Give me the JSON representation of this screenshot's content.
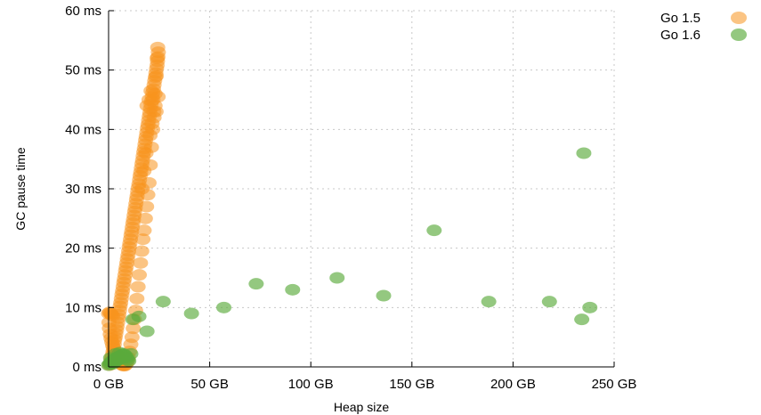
{
  "chart_data": {
    "type": "scatter",
    "xlabel": "Heap size",
    "ylabel": "GC pause time",
    "xlim": [
      0,
      250
    ],
    "ylim": [
      0,
      60
    ],
    "x_ticks": [
      {
        "value": 0,
        "label": "0 GB"
      },
      {
        "value": 50,
        "label": "50 GB"
      },
      {
        "value": 100,
        "label": "100 GB"
      },
      {
        "value": 150,
        "label": "150 GB"
      },
      {
        "value": 200,
        "label": "200 GB"
      },
      {
        "value": 250,
        "label": "250 GB"
      }
    ],
    "y_ticks": [
      {
        "value": 0,
        "label": "0 ms"
      },
      {
        "value": 10,
        "label": "10 ms"
      },
      {
        "value": 20,
        "label": "20 ms"
      },
      {
        "value": 30,
        "label": "30 ms"
      },
      {
        "value": 40,
        "label": "40 ms"
      },
      {
        "value": 50,
        "label": "50 ms"
      },
      {
        "value": 60,
        "label": "60 ms"
      }
    ],
    "grid": true,
    "legend_position": "top-right, outside plot",
    "series": [
      {
        "name": "Go 1.5",
        "color": "#f7941d",
        "points": [
          [
            0.5,
            0.3
          ],
          [
            0.9,
            0.6
          ],
          [
            1.2,
            1.0
          ],
          [
            1.5,
            1.5
          ],
          [
            1.8,
            2.0
          ],
          [
            2.2,
            2.6
          ],
          [
            2.5,
            3.2
          ],
          [
            2.8,
            3.8
          ],
          [
            3.0,
            4.5
          ],
          [
            3.3,
            5.0
          ],
          [
            3.6,
            5.6
          ],
          [
            3.9,
            6.2
          ],
          [
            4.2,
            6.8
          ],
          [
            4.5,
            7.5
          ],
          [
            4.8,
            8.2
          ],
          [
            5.1,
            8.8
          ],
          [
            5.4,
            9.5
          ],
          [
            5.7,
            10.2
          ],
          [
            6.0,
            10.8
          ],
          [
            6.3,
            11.5
          ],
          [
            6.6,
            12.2
          ],
          [
            6.9,
            12.8
          ],
          [
            7.2,
            13.5
          ],
          [
            7.5,
            14.2
          ],
          [
            7.8,
            14.8
          ],
          [
            8.1,
            15.5
          ],
          [
            8.4,
            16.2
          ],
          [
            8.7,
            16.8
          ],
          [
            9.0,
            17.5
          ],
          [
            9.3,
            18.2
          ],
          [
            9.6,
            18.8
          ],
          [
            9.9,
            19.5
          ],
          [
            10.2,
            20.2
          ],
          [
            10.5,
            20.8
          ],
          [
            10.8,
            21.5
          ],
          [
            11.1,
            22.2
          ],
          [
            11.4,
            22.8
          ],
          [
            11.7,
            23.5
          ],
          [
            12.0,
            24.2
          ],
          [
            12.3,
            24.8
          ],
          [
            12.6,
            25.5
          ],
          [
            12.9,
            26.2
          ],
          [
            13.2,
            26.8
          ],
          [
            13.5,
            27.5
          ],
          [
            13.8,
            28.2
          ],
          [
            14.1,
            28.8
          ],
          [
            14.4,
            29.5
          ],
          [
            14.7,
            30.2
          ],
          [
            15.0,
            30.8
          ],
          [
            15.3,
            31.5
          ],
          [
            15.6,
            32.2
          ],
          [
            15.9,
            32.8
          ],
          [
            16.2,
            33.5
          ],
          [
            16.5,
            34.2
          ],
          [
            16.8,
            34.8
          ],
          [
            17.1,
            35.5
          ],
          [
            17.4,
            36.2
          ],
          [
            17.7,
            36.8
          ],
          [
            18.0,
            37.5
          ],
          [
            18.3,
            38.2
          ],
          [
            18.6,
            38.8
          ],
          [
            18.9,
            39.5
          ],
          [
            19.2,
            40.2
          ],
          [
            19.5,
            40.8
          ],
          [
            19.8,
            41.5
          ],
          [
            20.1,
            42.2
          ],
          [
            20.4,
            42.8
          ],
          [
            20.7,
            43.5
          ],
          [
            21.0,
            44.2
          ],
          [
            21.3,
            44.8
          ],
          [
            21.6,
            45.5
          ],
          [
            21.9,
            46.2
          ],
          [
            22.2,
            46.8
          ],
          [
            22.5,
            47.5
          ],
          [
            22.8,
            48.2
          ],
          [
            23.1,
            48.8
          ],
          [
            23.4,
            49.5
          ],
          [
            23.7,
            50.2
          ],
          [
            24.0,
            50.8
          ],
          [
            24.2,
            51.5
          ],
          [
            24.4,
            52.2
          ],
          [
            24.6,
            53.0
          ],
          [
            24.3,
            53.8
          ],
          [
            24.0,
            52.0
          ],
          [
            23.6,
            49.0
          ],
          [
            23.0,
            46.0
          ],
          [
            22.4,
            43.0
          ],
          [
            21.8,
            40.0
          ],
          [
            21.2,
            37.0
          ],
          [
            20.6,
            34.0
          ],
          [
            20.0,
            31.0
          ],
          [
            19.4,
            29.0
          ],
          [
            18.8,
            27.0
          ],
          [
            18.2,
            25.0
          ],
          [
            17.6,
            23.0
          ],
          [
            17.0,
            21.5
          ],
          [
            16.4,
            19.5
          ],
          [
            15.8,
            17.5
          ],
          [
            15.2,
            15.5
          ],
          [
            14.6,
            13.5
          ],
          [
            14.0,
            11.5
          ],
          [
            13.4,
            9.5
          ],
          [
            12.8,
            8.0
          ],
          [
            12.2,
            6.5
          ],
          [
            11.6,
            5.0
          ],
          [
            11.0,
            3.8
          ],
          [
            10.4,
            2.6
          ],
          [
            9.8,
            1.6
          ],
          [
            9.2,
            0.8
          ],
          [
            8.6,
            0.4
          ],
          [
            8.0,
            0.2
          ],
          [
            7.4,
            0.2
          ],
          [
            6.8,
            0.3
          ],
          [
            6.2,
            0.5
          ],
          [
            5.6,
            0.8
          ],
          [
            5.0,
            1.2
          ],
          [
            4.4,
            1.6
          ],
          [
            3.8,
            2.0
          ],
          [
            3.2,
            2.5
          ],
          [
            2.6,
            3.0
          ],
          [
            2.0,
            3.6
          ],
          [
            1.6,
            4.2
          ],
          [
            1.2,
            4.8
          ],
          [
            0.8,
            5.5
          ],
          [
            0.4,
            6.5
          ],
          [
            0.2,
            7.5
          ],
          [
            0.0,
            9.0
          ],
          [
            0.5,
            9.2
          ],
          [
            1.0,
            9.0
          ],
          [
            1.5,
            8.8
          ],
          [
            2.0,
            8.6
          ],
          [
            19.0,
            44.0
          ],
          [
            20.0,
            45.0
          ],
          [
            21.0,
            46.5
          ],
          [
            22.0,
            45.0
          ],
          [
            23.0,
            44.0
          ],
          [
            20.5,
            39.0
          ],
          [
            21.5,
            41.0
          ],
          [
            22.5,
            42.0
          ],
          [
            23.5,
            43.0
          ],
          [
            24.5,
            45.5
          ],
          [
            18.5,
            36.0
          ],
          [
            17.5,
            33.0
          ],
          [
            16.5,
            30.0
          ]
        ]
      },
      {
        "name": "Go 1.6",
        "color": "#5aab3c",
        "points": [
          [
            0.0,
            0.3
          ],
          [
            0.5,
            0.5
          ],
          [
            1.0,
            0.7
          ],
          [
            1.5,
            0.9
          ],
          [
            2.0,
            1.0
          ],
          [
            2.5,
            1.2
          ],
          [
            3.0,
            1.3
          ],
          [
            3.5,
            1.4
          ],
          [
            4.0,
            1.5
          ],
          [
            4.5,
            1.6
          ],
          [
            5.0,
            1.7
          ],
          [
            5.5,
            1.8
          ],
          [
            6.0,
            1.9
          ],
          [
            6.5,
            2.0
          ],
          [
            7.0,
            2.1
          ],
          [
            7.5,
            2.2
          ],
          [
            8.0,
            2.0
          ],
          [
            8.5,
            1.8
          ],
          [
            9.0,
            1.5
          ],
          [
            9.5,
            1.2
          ],
          [
            10.0,
            1.0
          ],
          [
            11.0,
            2.2
          ],
          [
            1.0,
            1.5
          ],
          [
            2.0,
            0.5
          ],
          [
            3.0,
            0.8
          ],
          [
            4.0,
            1.0
          ],
          [
            5.0,
            1.2
          ],
          [
            6.0,
            1.4
          ],
          [
            7.0,
            1.5
          ],
          [
            8.0,
            1.6
          ],
          [
            3.5,
            2.2
          ],
          [
            5.5,
            2.4
          ],
          [
            12,
            8
          ],
          [
            15,
            8.5
          ],
          [
            19,
            6
          ],
          [
            27,
            11
          ],
          [
            41,
            9
          ],
          [
            57,
            10
          ],
          [
            73,
            14
          ],
          [
            91,
            13
          ],
          [
            113,
            15
          ],
          [
            136,
            12
          ],
          [
            161,
            23
          ],
          [
            188,
            11
          ],
          [
            218,
            11
          ],
          [
            234,
            8
          ],
          [
            238,
            10
          ],
          [
            235,
            36
          ]
        ]
      }
    ]
  }
}
